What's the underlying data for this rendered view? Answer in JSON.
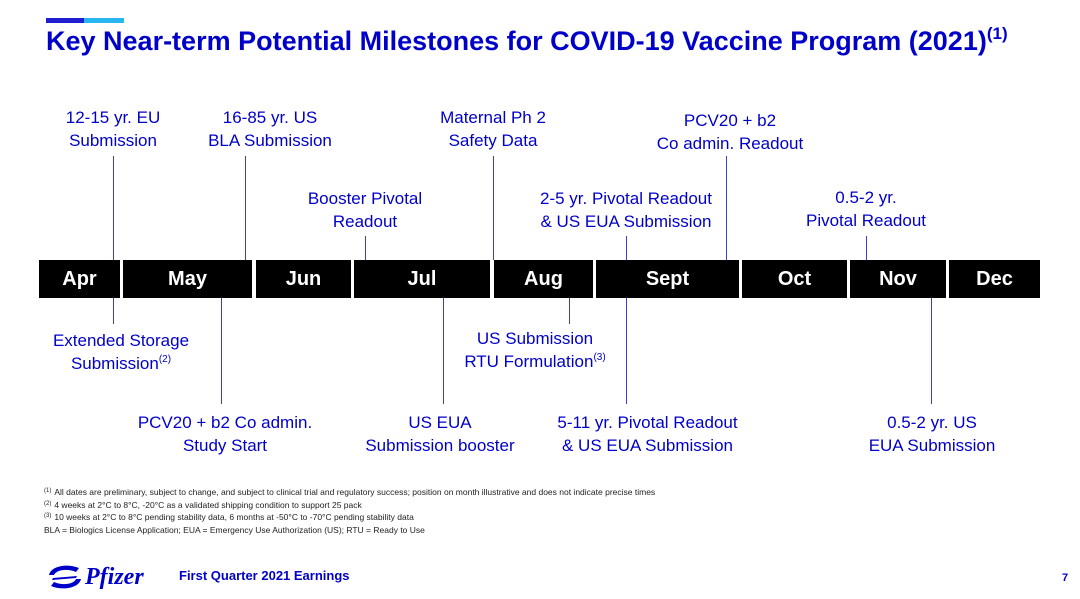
{
  "title": {
    "text": "Key Near-term Potential Milestones for COVID-19 Vaccine Program (2021)",
    "footnote_ref": "(1)"
  },
  "timeline": {
    "months": [
      "Apr",
      "May",
      "Jun",
      "Jul",
      "Aug",
      "Sept",
      "Oct",
      "Nov",
      "Dec"
    ]
  },
  "milestones": {
    "above": [
      {
        "lines": [
          "12-15 yr. EU",
          "Submission"
        ]
      },
      {
        "lines": [
          "16-85 yr. US",
          "BLA Submission"
        ]
      },
      {
        "lines": [
          "Booster Pivotal",
          "Readout"
        ]
      },
      {
        "lines": [
          "Maternal Ph 2",
          "Safety Data"
        ]
      },
      {
        "lines": [
          "2-5 yr. Pivotal Readout",
          "& US EUA Submission"
        ]
      },
      {
        "lines": [
          "PCV20 + b2",
          "Co admin. Readout"
        ]
      },
      {
        "lines": [
          "0.5-2 yr.",
          "Pivotal Readout"
        ]
      }
    ],
    "below": [
      {
        "lines": [
          "Extended Storage",
          "Submission"
        ],
        "ref": "(2)"
      },
      {
        "lines": [
          "PCV20 + b2 Co admin.",
          "Study Start"
        ]
      },
      {
        "lines": [
          "US EUA",
          "Submission booster"
        ]
      },
      {
        "lines": [
          "US Submission",
          "RTU Formulation"
        ],
        "ref": "(3)"
      },
      {
        "lines": [
          "5-11 yr. Pivotal Readout",
          "& US EUA Submission"
        ]
      },
      {
        "lines": [
          "0.5-2 yr. US",
          "EUA Submission"
        ]
      }
    ]
  },
  "footnotes": [
    {
      "ref": "(1)",
      "text": "All dates are preliminary, subject to change, and subject to clinical trial and regulatory success; position on month illustrative and does not indicate precise times"
    },
    {
      "ref": "(2)",
      "text": "4 weeks at 2°C to 8°C, -20°C as a validated shipping condition to support 25 pack"
    },
    {
      "ref": "(3)",
      "text": "10 weeks at 2°C to 8°C pending stability data, 6 months at -50°C to -70°C pending stability data"
    },
    {
      "ref": "",
      "text": "BLA = Biologics License Application; EUA = Emergency Use Authorization (US); RTU = Ready to Use"
    }
  ],
  "footer": {
    "logo_text": "Pfizer",
    "text": "First Quarter 2021 Earnings",
    "page_number": "7"
  },
  "colors": {
    "brand_blue": "#0000c9",
    "accent_light_blue": "#27b6f0",
    "timeline_bg": "#000000"
  }
}
